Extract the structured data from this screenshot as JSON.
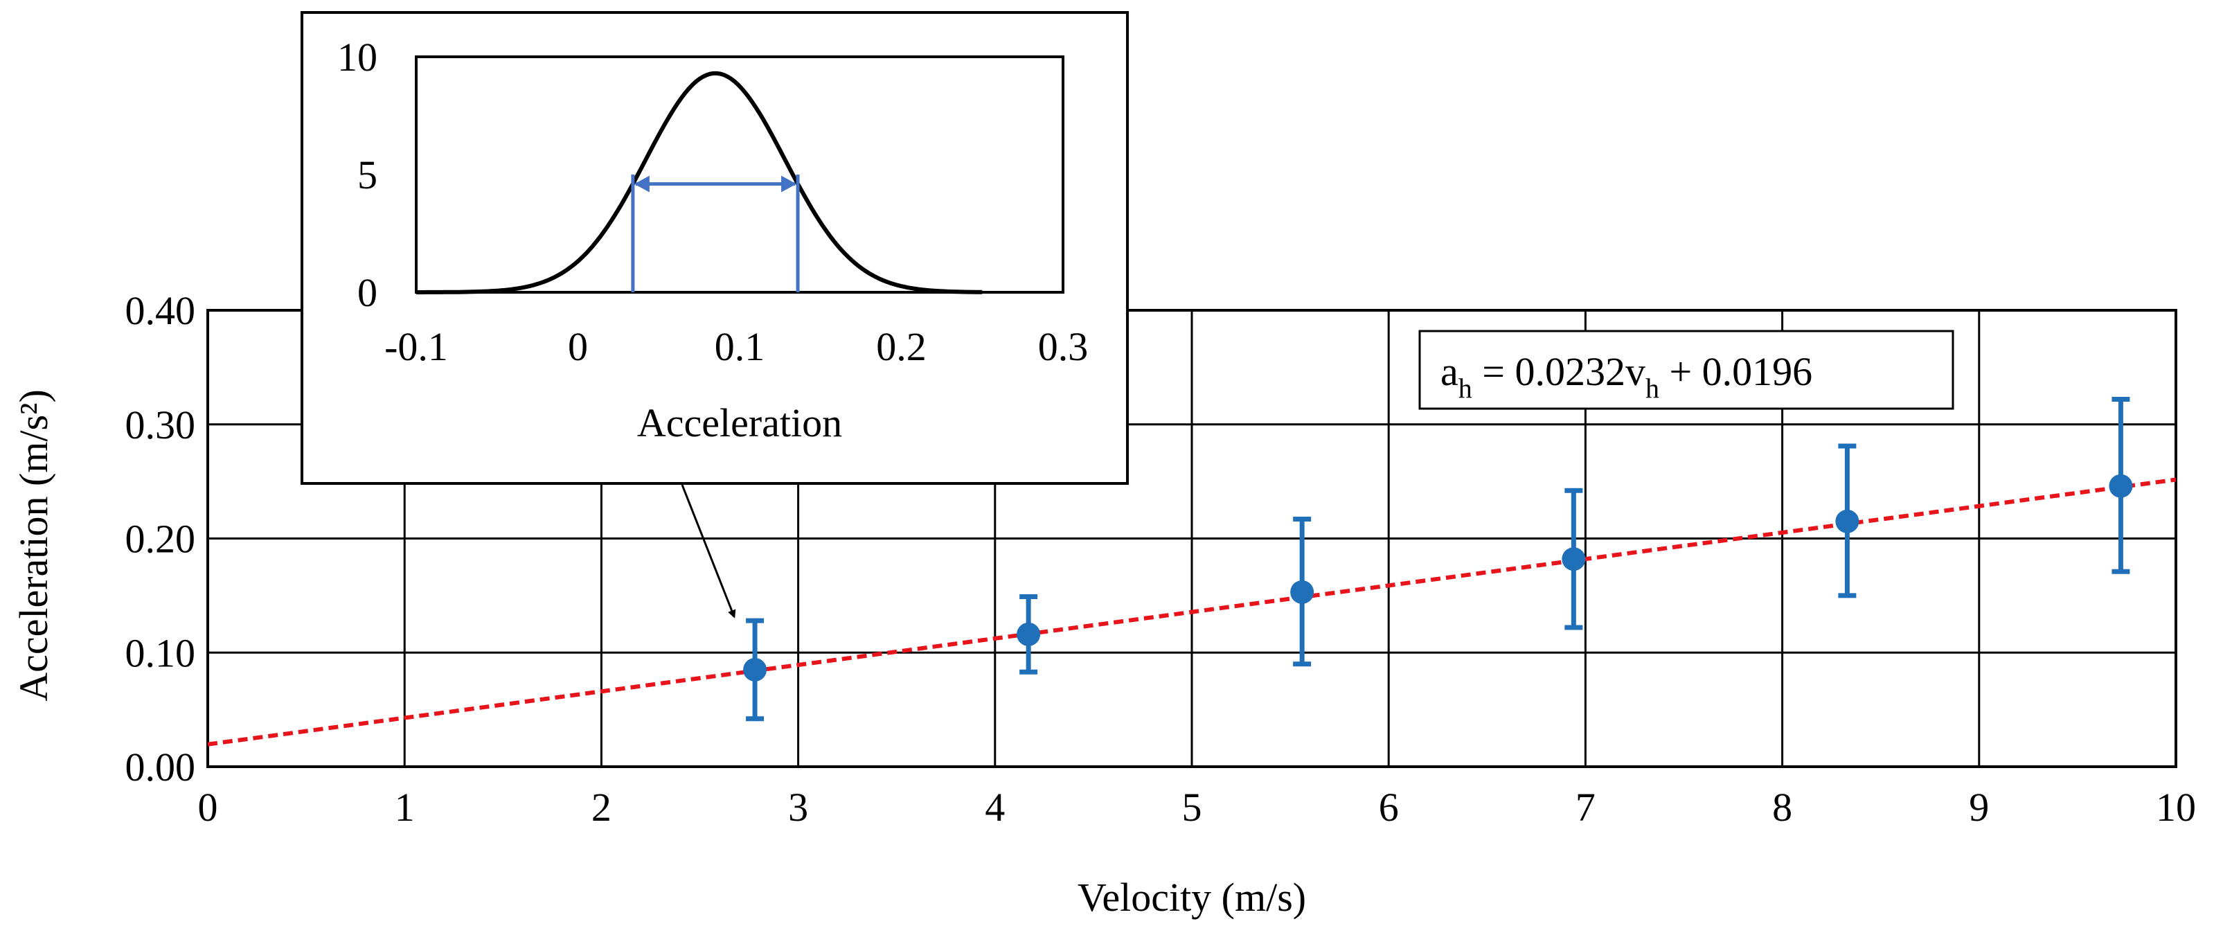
{
  "chart_data": [
    {
      "type": "scatter",
      "title": "",
      "xlabel": "Velocity (m/s)",
      "ylabel": "Acceleration (m/s²)",
      "xlim": [
        0,
        10
      ],
      "ylim": [
        0,
        0.4
      ],
      "x_ticks": [
        "0",
        "1",
        "2",
        "3",
        "4",
        "5",
        "6",
        "7",
        "8",
        "9",
        "10"
      ],
      "y_ticks": [
        "0.00",
        "0.10",
        "0.20",
        "0.30",
        "0.40"
      ],
      "grid": true,
      "series": [
        {
          "x": [
            2.78,
            4.17,
            5.56,
            6.94,
            8.33,
            9.72
          ],
          "y": [
            0.085,
            0.116,
            0.153,
            0.182,
            0.215,
            0.246
          ],
          "y_err_low": [
            0.042,
            0.083,
            0.09,
            0.122,
            0.15,
            0.171
          ],
          "y_err_high": [
            0.128,
            0.149,
            0.217,
            0.242,
            0.281,
            0.322
          ],
          "color": "#1f6fb9"
        }
      ],
      "trendline": {
        "slope": 0.0232,
        "intercept": 0.0196,
        "style": "dashed",
        "color": "#e8141b"
      },
      "annotation": {
        "a": "a",
        "a_sub": "h",
        "mid": " = 0.0232v",
        "v_sub": "h",
        "end": " + 0.0196"
      }
    },
    {
      "type": "line",
      "title": "",
      "xlabel": "Acceleration",
      "ylabel": "",
      "xlim": [
        -0.1,
        0.3
      ],
      "ylim": [
        0,
        10
      ],
      "x_ticks": [
        "-0.1",
        "0",
        "0.1",
        "0.2",
        "0.3"
      ],
      "y_ticks": [
        "0",
        "5",
        "10"
      ],
      "curve": {
        "kind": "gaussian",
        "mean": 0.085,
        "sd": 0.043,
        "x_range": [
          -0.1,
          0.25
        ],
        "color": "#000000"
      },
      "fwhm_marker": {
        "x_low": 0.034,
        "x_high": 0.136,
        "y": 4.6,
        "top": 5.0,
        "color": "#4472c4"
      }
    }
  ]
}
